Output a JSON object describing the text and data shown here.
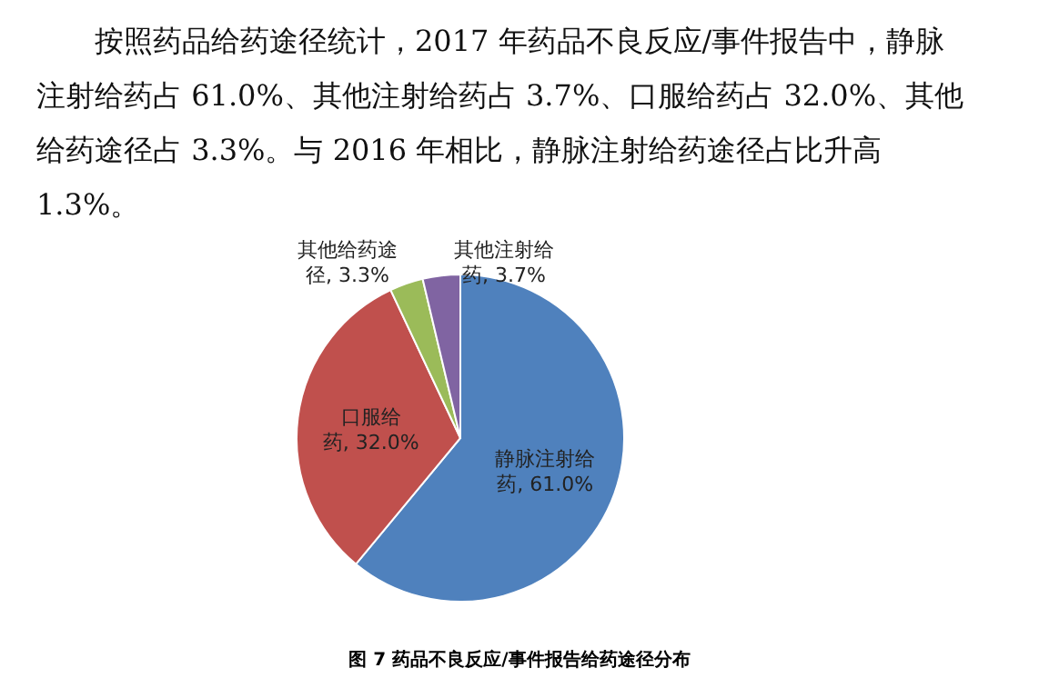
{
  "chart_data": {
    "type": "pie",
    "title": "图 7 药品不良反应/事件报告给药途径分布",
    "annotations": [
      "按照药品给药途径统计，2017 年药品不良反应/事件报告中，静脉注射给药占 61.0%、其他注射给药占 3.7%、口服给药占 32.0%、其他给药途径占 3.3%。与 2016 年相比，静脉注射给药途径占比升高 1.3%。"
    ],
    "categories": [
      "静脉注射给药",
      "口服给药",
      "其他给药途径",
      "其他注射给药"
    ],
    "values": [
      61.0,
      32.0,
      3.3,
      3.7
    ],
    "colors": [
      "#4f81bd",
      "#c0504d",
      "#9bbb59",
      "#8064a2"
    ],
    "value_labels": [
      "61.0%",
      "32.0%",
      "3.3%",
      "3.7%"
    ],
    "legend": false
  }
}
